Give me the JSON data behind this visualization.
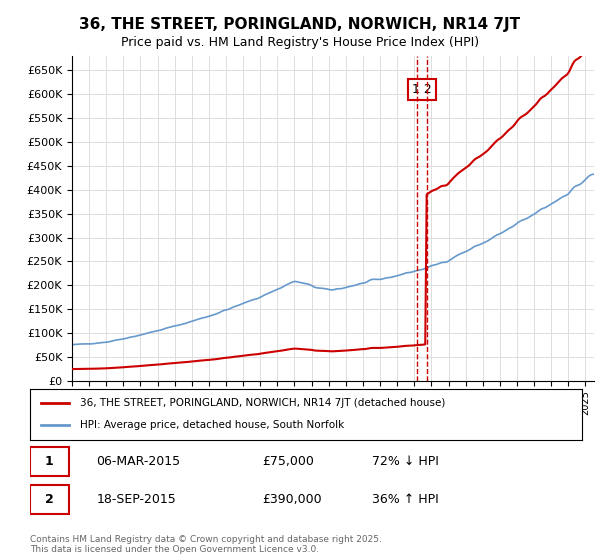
{
  "title": "36, THE STREET, PORINGLAND, NORWICH, NR14 7JT",
  "subtitle": "Price paid vs. HM Land Registry's House Price Index (HPI)",
  "legend_entry1": "36, THE STREET, PORINGLAND, NORWICH, NR14 7JT (detached house)",
  "legend_entry2": "HPI: Average price, detached house, South Norfolk",
  "transaction1_label": "1",
  "transaction1_date": "06-MAR-2015",
  "transaction1_price": "£75,000",
  "transaction1_hpi": "72% ↓ HPI",
  "transaction2_label": "2",
  "transaction2_date": "18-SEP-2015",
  "transaction2_price": "£390,000",
  "transaction2_hpi": "36% ↑ HPI",
  "copyright": "Contains HM Land Registry data © Crown copyright and database right 2025.\nThis data is licensed under the Open Government Licence v3.0.",
  "hpi_color": "#6699cc",
  "price_color": "#cc0000",
  "vline_color": "#cc0000",
  "annotation_box_color": "#cc0000",
  "ylim_min": 0,
  "ylim_max": 680000,
  "year_start": 1995,
  "year_end": 2025,
  "transaction1_year": 2015.17,
  "transaction2_year": 2015.72,
  "transaction1_price_val": 75000,
  "transaction2_price_val": 390000,
  "background_color": "#ffffff",
  "grid_color": "#dddddd"
}
